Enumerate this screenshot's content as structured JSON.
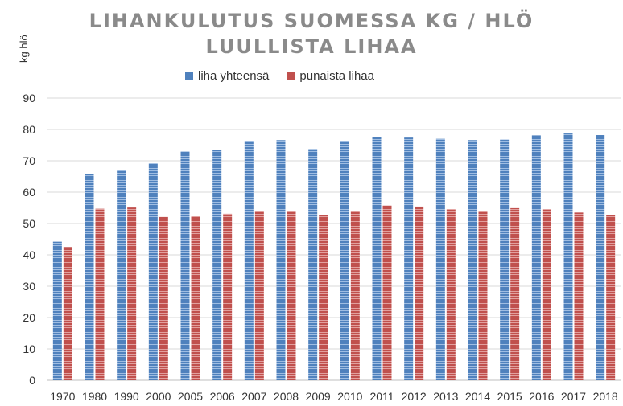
{
  "chart_data": {
    "type": "bar",
    "title": "LIHANKULUTUS SUOMESSA KG / HLÖ",
    "subtitle": "LUULLISTA LIHAA",
    "ylabel": "kg hlö",
    "xlabel": "",
    "ylim": [
      0,
      90
    ],
    "yticks": [
      0,
      10,
      20,
      30,
      40,
      50,
      60,
      70,
      80,
      90
    ],
    "grid": true,
    "legend_position": "top",
    "categories": [
      "1970",
      "1980",
      "1990",
      "2000",
      "2005",
      "2006",
      "2007",
      "2008",
      "2009",
      "2010",
      "2011",
      "2012",
      "2013",
      "2014",
      "2015",
      "2016",
      "2017",
      "2018"
    ],
    "series": [
      {
        "name": "liha yhteensä",
        "color": "#4f81bd",
        "values": [
          44.2,
          65.7,
          67.1,
          69.2,
          73.0,
          73.4,
          76.3,
          76.6,
          73.8,
          76.2,
          77.6,
          77.4,
          77.0,
          76.6,
          76.8,
          78.1,
          78.7,
          78.2
        ]
      },
      {
        "name": "punaista lihaa",
        "color": "#c0504d",
        "values": [
          42.5,
          54.7,
          55.1,
          52.1,
          52.3,
          53.1,
          54.1,
          54.1,
          52.7,
          53.9,
          55.7,
          55.4,
          54.6,
          53.9,
          54.9,
          54.6,
          53.5,
          52.6
        ]
      }
    ]
  }
}
